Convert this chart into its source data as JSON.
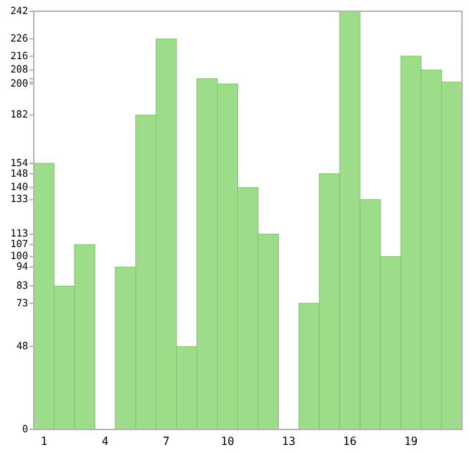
{
  "chart_data": {
    "type": "bar",
    "categories": [
      "1",
      null,
      null,
      "4",
      null,
      null,
      "7",
      null,
      null,
      "10",
      null,
      null,
      "13",
      null,
      null,
      "16",
      null,
      null,
      "19",
      null,
      null
    ],
    "values": [
      154,
      83,
      107,
      0,
      94,
      182,
      226,
      48,
      203,
      200,
      140,
      113,
      0,
      73,
      148,
      242,
      133,
      100,
      216,
      208,
      201
    ],
    "color": "#9ddc89",
    "ylim": [
      0,
      242
    ],
    "yticks": [
      0,
      48,
      73,
      83,
      94,
      100,
      107,
      113,
      133,
      140,
      148,
      154,
      182,
      200,
      {
        "value": 201,
        "label": null
      },
      {
        "value": 203,
        "label": null
      },
      208,
      216,
      226,
      242
    ]
  }
}
